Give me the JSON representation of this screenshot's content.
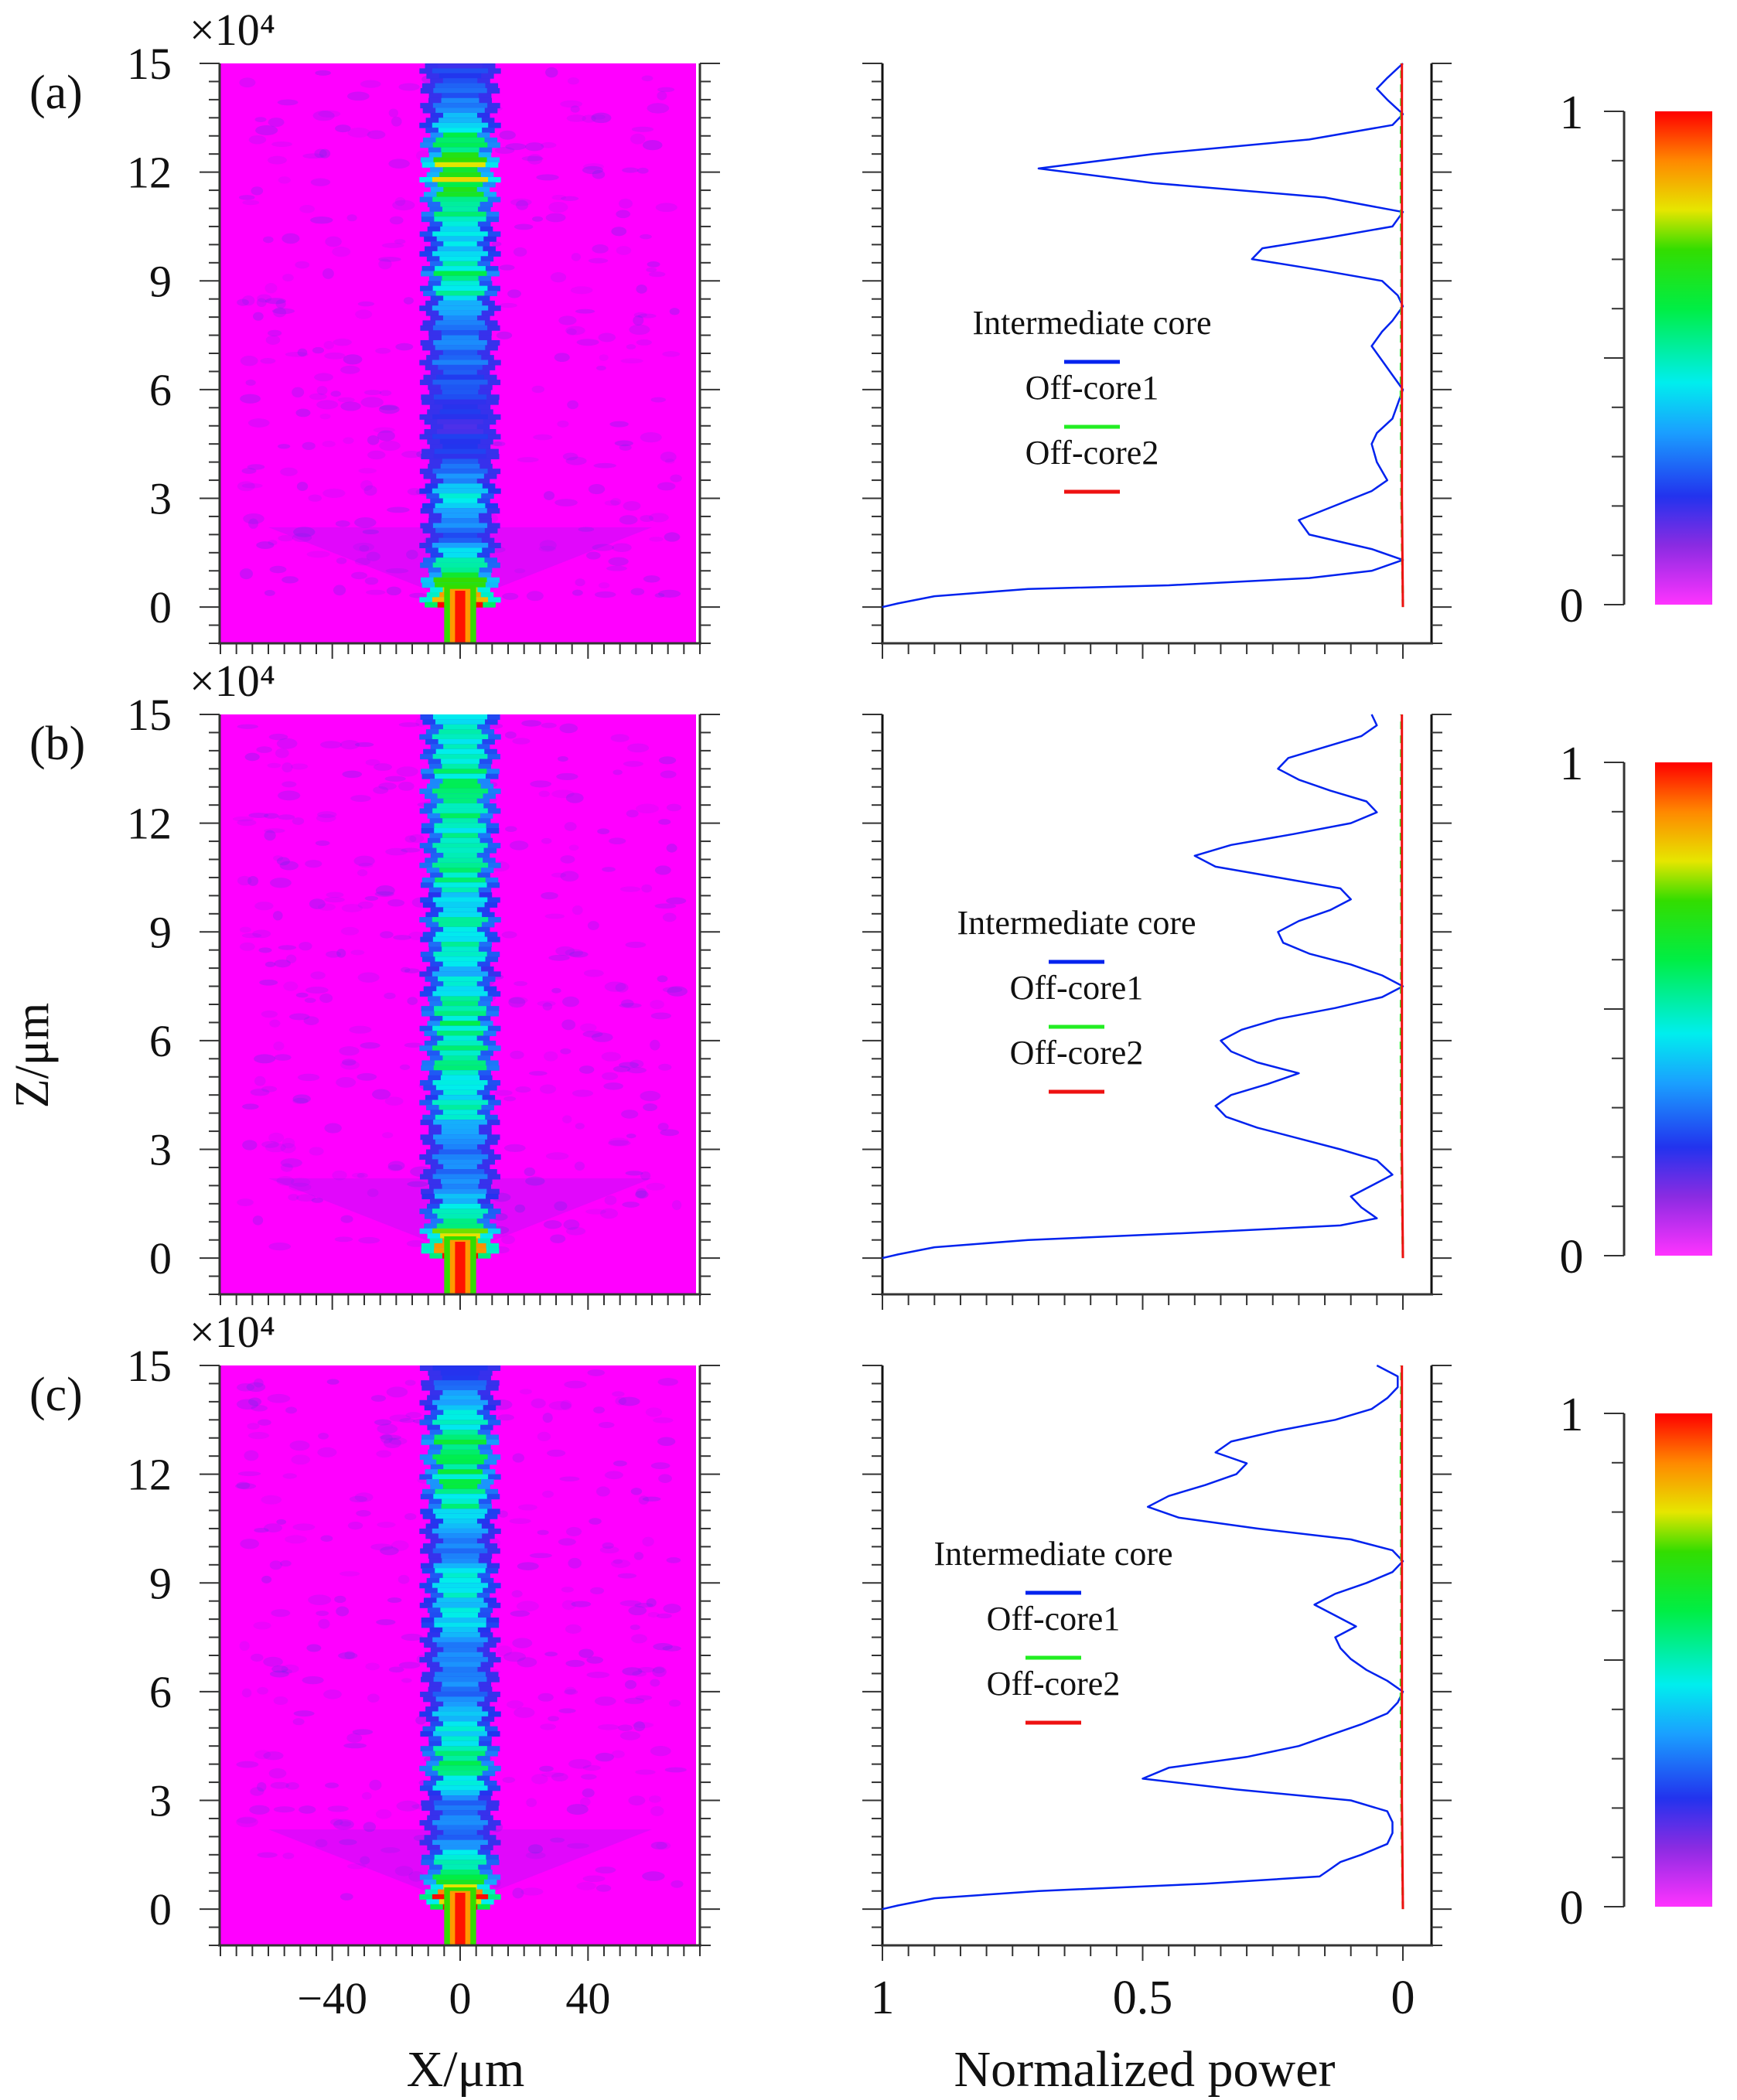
{
  "figure": {
    "y_axis_label": "Z/μm",
    "x_axis_label_left": "X/μm",
    "x_axis_label_right": "Normalized power",
    "multiplier_label": "×10⁴",
    "colorbar_min_label": "0",
    "colorbar_max_label": "1"
  },
  "colors": {
    "intermediate_core": "#0022ee",
    "off_core1": "#22ee22",
    "off_core2": "#ee1111",
    "field_background": "#ff00ff"
  },
  "chart_data": [
    {
      "type": "heatmap",
      "panel": "(a)",
      "title": "",
      "xlabel": "X/μm",
      "ylabel": "Z/μm",
      "x_ticks": [
        -40,
        0,
        40
      ],
      "y_ticks": [
        0,
        3,
        6,
        9,
        12,
        15
      ],
      "y_multiplier": "×10⁴",
      "xlim": [
        -75,
        75
      ],
      "ylim": [
        -1,
        15
      ],
      "colorbar": {
        "min": 0,
        "max": 1,
        "colormap": "magenta-blue-cyan-green-yellow-red"
      },
      "core_intensity_profile": {
        "z": [
          0,
          0.5,
          1,
          2,
          3,
          4,
          5,
          6,
          7,
          8,
          9,
          10,
          11,
          12,
          13,
          14,
          15
        ],
        "intensity": [
          1.0,
          0.85,
          0.55,
          0.25,
          0.45,
          0.25,
          0.2,
          0.25,
          0.3,
          0.3,
          0.55,
          0.4,
          0.55,
          0.75,
          0.55,
          0.3,
          0.2
        ]
      }
    },
    {
      "type": "line",
      "panel": "(a)",
      "xlabel": "Normalized power",
      "ylabel": "Z/μm",
      "x_ticks": [
        1,
        0.5,
        0
      ],
      "xlim": [
        1,
        0
      ],
      "ylim": [
        -1,
        15
      ],
      "legend": [
        "Intermediate core",
        "Off-core1",
        "Off-core2"
      ],
      "series": [
        {
          "name": "Intermediate core",
          "z": [
            0,
            0.1,
            0.3,
            0.5,
            0.6,
            0.8,
            1.0,
            1.3,
            1.6,
            2.0,
            2.4,
            2.8,
            3.2,
            3.5,
            4.0,
            4.5,
            4.8,
            5.2,
            5.6,
            6.0,
            6.4,
            6.8,
            7.2,
            7.6,
            7.9,
            8.3,
            8.6,
            9.0,
            9.3,
            9.6,
            9.9,
            10.2,
            10.5,
            10.9,
            11.3,
            11.7,
            12.1,
            12.5,
            12.9,
            13.3,
            13.6,
            14.0,
            14.3,
            14.6,
            15.0
          ],
          "power": [
            1.0,
            0.97,
            0.9,
            0.72,
            0.45,
            0.18,
            0.06,
            0.0,
            0.06,
            0.18,
            0.2,
            0.13,
            0.06,
            0.03,
            0.05,
            0.06,
            0.05,
            0.02,
            0.01,
            0.0,
            0.02,
            0.04,
            0.06,
            0.04,
            0.02,
            0.0,
            0.01,
            0.04,
            0.16,
            0.29,
            0.27,
            0.14,
            0.02,
            0.0,
            0.15,
            0.48,
            0.7,
            0.48,
            0.18,
            0.02,
            0.0,
            0.03,
            0.05,
            0.03,
            0.0
          ]
        },
        {
          "name": "Off-core1",
          "z": [
            0,
            3,
            6,
            9,
            12,
            15
          ],
          "power": [
            0.0,
            0.003,
            0.004,
            0.003,
            0.004,
            0.003
          ]
        },
        {
          "name": "Off-core2",
          "z": [
            0,
            3,
            6,
            9,
            12,
            15
          ],
          "power": [
            0.0,
            0.002,
            0.002,
            0.002,
            0.002,
            0.002
          ]
        }
      ]
    },
    {
      "type": "heatmap",
      "panel": "(b)",
      "xlabel": "X/μm",
      "ylabel": "Z/μm",
      "x_ticks": [
        -40,
        0,
        40
      ],
      "y_ticks": [
        0,
        3,
        6,
        9,
        12,
        15
      ],
      "y_multiplier": "×10⁴",
      "xlim": [
        -75,
        75
      ],
      "ylim": [
        -1,
        15
      ],
      "colorbar": {
        "min": 0,
        "max": 1,
        "colormap": "magenta-blue-cyan-green-yellow-red"
      },
      "core_intensity_profile": {
        "z": [
          0,
          0.5,
          1,
          2,
          3,
          4,
          5,
          6,
          7,
          8,
          9,
          10,
          11,
          12,
          13,
          14,
          15
        ],
        "intensity": [
          1.0,
          0.85,
          0.55,
          0.3,
          0.3,
          0.45,
          0.5,
          0.55,
          0.5,
          0.4,
          0.5,
          0.45,
          0.55,
          0.5,
          0.55,
          0.5,
          0.45
        ]
      }
    },
    {
      "type": "line",
      "panel": "(b)",
      "xlabel": "Normalized power",
      "ylabel": "Z/μm",
      "x_ticks": [
        1,
        0.5,
        0
      ],
      "xlim": [
        1,
        0
      ],
      "ylim": [
        -1,
        15
      ],
      "legend": [
        "Intermediate core",
        "Off-core1",
        "Off-core2"
      ],
      "series": [
        {
          "name": "Intermediate core",
          "z": [
            0,
            0.1,
            0.3,
            0.5,
            0.7,
            0.9,
            1.1,
            1.4,
            1.7,
            2.0,
            2.3,
            2.7,
            3.0,
            3.3,
            3.6,
            3.9,
            4.2,
            4.5,
            4.8,
            5.1,
            5.4,
            5.7,
            6.0,
            6.3,
            6.6,
            6.9,
            7.2,
            7.5,
            7.8,
            8.1,
            8.4,
            8.7,
            9.0,
            9.3,
            9.6,
            9.9,
            10.2,
            10.5,
            10.8,
            11.1,
            11.4,
            11.7,
            12.0,
            12.3,
            12.6,
            12.9,
            13.2,
            13.5,
            13.8,
            14.1,
            14.4,
            14.7,
            15.0
          ],
          "power": [
            1.0,
            0.97,
            0.9,
            0.72,
            0.4,
            0.12,
            0.05,
            0.08,
            0.1,
            0.06,
            0.02,
            0.05,
            0.12,
            0.2,
            0.28,
            0.34,
            0.36,
            0.33,
            0.26,
            0.2,
            0.28,
            0.33,
            0.35,
            0.31,
            0.24,
            0.13,
            0.04,
            0.0,
            0.04,
            0.1,
            0.18,
            0.23,
            0.24,
            0.2,
            0.14,
            0.1,
            0.12,
            0.24,
            0.36,
            0.4,
            0.33,
            0.21,
            0.1,
            0.05,
            0.07,
            0.14,
            0.2,
            0.24,
            0.22,
            0.15,
            0.08,
            0.05,
            0.06
          ]
        },
        {
          "name": "Off-core1",
          "z": [
            0,
            3,
            6,
            9,
            12,
            15
          ],
          "power": [
            0.0,
            0.003,
            0.004,
            0.003,
            0.004,
            0.003
          ]
        },
        {
          "name": "Off-core2",
          "z": [
            0,
            3,
            6,
            9,
            12,
            15
          ],
          "power": [
            0.0,
            0.002,
            0.002,
            0.002,
            0.002,
            0.002
          ]
        }
      ]
    },
    {
      "type": "heatmap",
      "panel": "(c)",
      "xlabel": "X/μm",
      "ylabel": "Z/μm",
      "x_ticks": [
        -40,
        0,
        40
      ],
      "y_ticks": [
        0,
        3,
        6,
        9,
        12,
        15
      ],
      "y_multiplier": "×10⁴",
      "xlim": [
        -75,
        75
      ],
      "ylim": [
        -1,
        15
      ],
      "colorbar": {
        "min": 0,
        "max": 1,
        "colormap": "magenta-blue-cyan-green-yellow-red"
      },
      "core_intensity_profile": {
        "z": [
          0,
          0.5,
          1,
          2,
          3,
          4,
          5,
          6,
          7,
          8,
          9,
          10,
          11,
          12,
          13,
          14,
          15
        ],
        "intensity": [
          1.0,
          0.85,
          0.55,
          0.3,
          0.3,
          0.55,
          0.45,
          0.3,
          0.3,
          0.4,
          0.45,
          0.3,
          0.5,
          0.55,
          0.55,
          0.35,
          0.2
        ]
      }
    },
    {
      "type": "line",
      "panel": "(c)",
      "xlabel": "Normalized power",
      "ylabel": "Z/μm",
      "x_ticks": [
        1,
        0.5,
        0
      ],
      "xlim": [
        1,
        0
      ],
      "ylim": [
        -1,
        15
      ],
      "legend": [
        "Intermediate core",
        "Off-core1",
        "Off-core2"
      ],
      "series": [
        {
          "name": "Intermediate core",
          "z": [
            0,
            0.1,
            0.3,
            0.5,
            0.7,
            0.9,
            1.1,
            1.3,
            1.5,
            1.8,
            2.1,
            2.4,
            2.7,
            3.0,
            3.3,
            3.6,
            3.9,
            4.2,
            4.5,
            4.8,
            5.1,
            5.4,
            5.7,
            6.0,
            6.3,
            6.6,
            6.9,
            7.2,
            7.5,
            7.8,
            8.1,
            8.4,
            8.7,
            9.0,
            9.3,
            9.6,
            9.9,
            10.2,
            10.5,
            10.8,
            11.1,
            11.4,
            11.7,
            12.0,
            12.3,
            12.6,
            12.9,
            13.2,
            13.5,
            13.8,
            14.1,
            14.4,
            14.7,
            15.0
          ],
          "power": [
            1.0,
            0.97,
            0.9,
            0.7,
            0.38,
            0.16,
            0.14,
            0.12,
            0.08,
            0.03,
            0.02,
            0.02,
            0.03,
            0.1,
            0.32,
            0.5,
            0.45,
            0.3,
            0.2,
            0.14,
            0.08,
            0.03,
            0.01,
            0.0,
            0.03,
            0.07,
            0.1,
            0.12,
            0.13,
            0.09,
            0.13,
            0.17,
            0.13,
            0.07,
            0.02,
            0.0,
            0.02,
            0.1,
            0.28,
            0.43,
            0.49,
            0.45,
            0.38,
            0.32,
            0.3,
            0.36,
            0.33,
            0.24,
            0.13,
            0.06,
            0.03,
            0.01,
            0.01,
            0.05
          ]
        },
        {
          "name": "Off-core1",
          "z": [
            0,
            3,
            6,
            9,
            12,
            15
          ],
          "power": [
            0.0,
            0.003,
            0.004,
            0.003,
            0.004,
            0.003
          ]
        },
        {
          "name": "Off-core2",
          "z": [
            0,
            3,
            6,
            9,
            12,
            15
          ],
          "power": [
            0.0,
            0.002,
            0.002,
            0.002,
            0.002,
            0.002
          ]
        }
      ]
    }
  ]
}
